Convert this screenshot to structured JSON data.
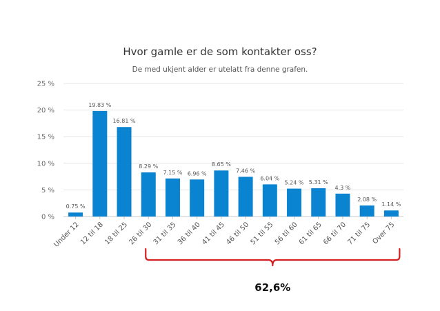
{
  "chart_data": {
    "type": "bar",
    "title": "Hvor gamle er de som kontakter oss?",
    "subtitle": "De med ukjent alder er utelatt fra denne grafen.",
    "categories": [
      "Under 12",
      "12 til 18",
      "18 til 25",
      "26 til 30",
      "31 til 35",
      "36 til 40",
      "41 til 45",
      "46 til 50",
      "51 til 55",
      "56 til 60",
      "61 til 65",
      "66 til 70",
      "71 til 75",
      "Over 75"
    ],
    "values": [
      0.75,
      19.83,
      16.81,
      8.29,
      7.15,
      6.96,
      8.65,
      7.46,
      6.04,
      5.24,
      5.31,
      4.3,
      2.08,
      1.14
    ],
    "data_labels": [
      "0.75 %",
      "19.83 %",
      "16.81 %",
      "8.29 %",
      "7.15 %",
      "6.96 %",
      "8.65 %",
      "7.46 %",
      "6.04 %",
      "5.24 %",
      "5.31 %",
      "4.3 %",
      "2.08 %",
      "1.14 %"
    ],
    "yticks": [
      0,
      5,
      10,
      15,
      20,
      25
    ],
    "ytick_labels": [
      "0 %",
      "5 %",
      "10 %",
      "15 %",
      "20 %",
      "25 %"
    ],
    "ylim": [
      0,
      25
    ],
    "grid": true,
    "legend": "none",
    "bar_color": "#0a84d0",
    "annotation": {
      "text": "62,6%",
      "brace_from": "26 til 30",
      "brace_to": "Over 75",
      "color": "#d42020"
    }
  }
}
